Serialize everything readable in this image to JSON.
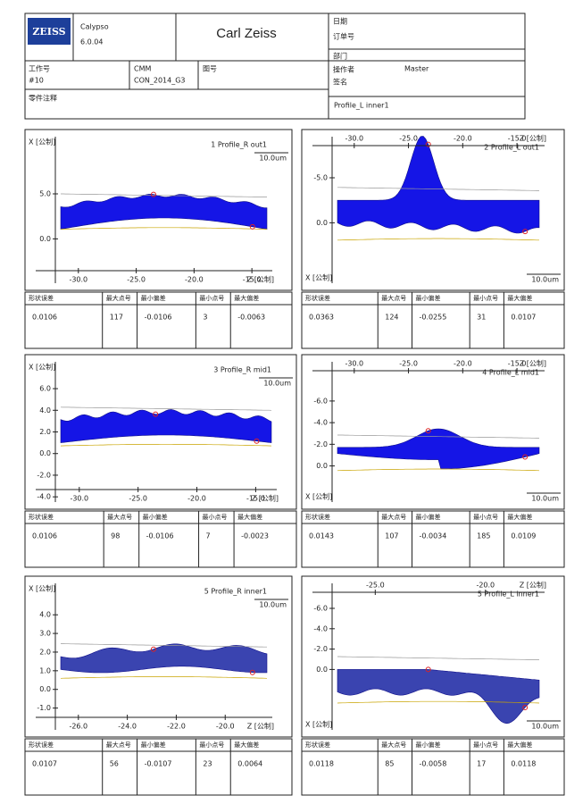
{
  "header": {
    "logo": "ZEISS",
    "software": "Calypso",
    "version": "6.0.04",
    "company": "Carl Zeiss",
    "date_label": "日期",
    "order_label": "订单号",
    "job_label": "工作号",
    "job": "#10",
    "cmm_label": "CMM",
    "cmm": "CON_2014_G3",
    "drawing_label": "图号",
    "dept_label": "部门",
    "operator_label": "操作者",
    "operator": "Master",
    "sign_label": "签名",
    "comment_label": "零件注释",
    "plan": "Profile_L inner1"
  },
  "stat_labels": [
    "形状误差",
    "最大点号",
    "最小偏差",
    "最小点号",
    "最大偏差"
  ],
  "panels": [
    {
      "title": "1  Profile_R out1",
      "y_label": "X [公制]",
      "x_label": "Z [公制]",
      "scale": "10.0um",
      "yticks": [
        "5.0",
        "0.0"
      ],
      "xticks": [
        "-30.0",
        "-25.0",
        "-20.0",
        "-15.0"
      ],
      "stats": [
        "0.0106",
        "117",
        "-0.0106",
        "3",
        "-0.0063"
      ]
    },
    {
      "title": "2  Profile_L out1",
      "y_label": "X [公制]",
      "x_label": "Z [公制]",
      "scale": "10.0um",
      "yticks": [
        "-5.0",
        "0.0"
      ],
      "xticks": [
        "-30.0",
        "-25.0",
        "-20.0",
        "-15.0"
      ],
      "stats": [
        "0.0363",
        "124",
        "-0.0255",
        "31",
        "0.0107"
      ]
    },
    {
      "title": "3  Profile_R mid1",
      "y_label": "X [公制]",
      "x_label": "Z [公制]",
      "scale": "10.0um",
      "yticks": [
        "6.0",
        "4.0",
        "2.0",
        "0.0",
        "-2.0",
        "-4.0"
      ],
      "xticks": [
        "-30.0",
        "-25.0",
        "-20.0",
        "-15.0"
      ],
      "stats": [
        "0.0106",
        "98",
        "-0.0106",
        "7",
        "-0.0023"
      ]
    },
    {
      "title": "4  Profile_L mid1",
      "y_label": "X [公制]",
      "x_label": "Z [公制]",
      "scale": "10.0um",
      "yticks": [
        "-6.0",
        "-4.0",
        "-2.0",
        "0.0"
      ],
      "xticks": [
        "-30.0",
        "-25.0",
        "-20.0",
        "-15.0"
      ],
      "stats": [
        "0.0143",
        "107",
        "-0.0034",
        "185",
        "0.0109"
      ]
    },
    {
      "title": "5  Profile_R inner1",
      "y_label": "X [公制]",
      "x_label": "Z [公制]",
      "scale": "10.0um",
      "yticks": [
        "4.0",
        "3.0",
        "2.0",
        "1.0",
        "0.0",
        "-1.0"
      ],
      "xticks": [
        "-26.0",
        "-24.0",
        "-22.0",
        "-20.0"
      ],
      "stats": [
        "0.0107",
        "56",
        "-0.0107",
        "23",
        "0.0064"
      ]
    },
    {
      "title": "5  Profile_L inner1",
      "y_label": "X [公制]",
      "x_label": "Z [公制]",
      "scale": "10.0um",
      "yticks": [
        "-6.0",
        "-4.0",
        "-2.0",
        "0.0"
      ],
      "xticks": [
        "-25.0",
        "-20.0"
      ],
      "stats": [
        "0.0118",
        "85",
        "-0.0058",
        "17",
        "0.0118"
      ]
    }
  ]
}
